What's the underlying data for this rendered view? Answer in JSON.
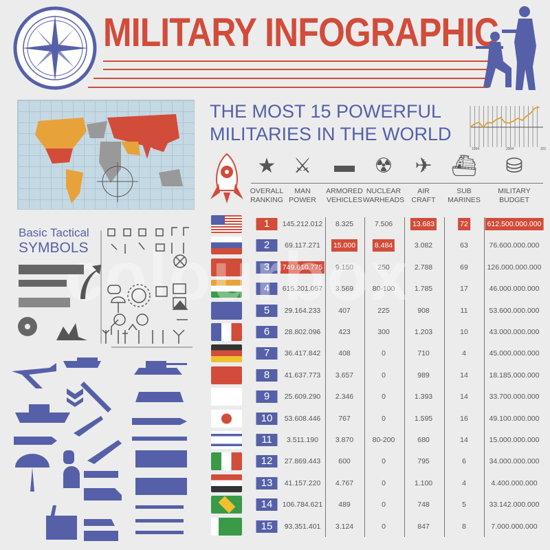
{
  "title": "MILITARY INFOGRAPHIC",
  "heading": {
    "line1": "THE MOST 15 POWERFUL",
    "line2": "MILITARIES IN THE WORLD"
  },
  "mini_chart": {
    "x_labels": [
      "1994",
      "2004",
      "2014"
    ],
    "color": "#e0a030"
  },
  "symbols_title": {
    "line1": "Basic Tactical",
    "line2": "SYMBOLS"
  },
  "watermark": "colourbox",
  "colors": {
    "red": "#d24c3a",
    "blue": "#5560a8",
    "background": "#ececec"
  },
  "columns": [
    {
      "key": "rank",
      "label1": "OVERALL",
      "label2": "RANKING",
      "icon": "star-icon"
    },
    {
      "key": "manpower",
      "label1": "MAN",
      "label2": "POWER",
      "icon": "soldiers-icon"
    },
    {
      "key": "armored",
      "label1": "ARMORED",
      "label2": "VEHICLES",
      "icon": "tank-icon"
    },
    {
      "key": "nuclear",
      "label1": "NUCLEAR",
      "label2": "WARHEADS",
      "icon": "gas-mask-icon"
    },
    {
      "key": "air",
      "label1": "AIR",
      "label2": "CRAFT",
      "icon": "jet-icon"
    },
    {
      "key": "sub",
      "label1": "SUB",
      "label2": "MARINES",
      "icon": "submarine-icon"
    },
    {
      "key": "budget",
      "label1": "MILITARY",
      "label2": "BUDGET",
      "icon": "coins-icon"
    }
  ],
  "rows": [
    {
      "flag": "usa",
      "rank": "1",
      "manpower": "145.212.012",
      "armored": "8.325",
      "nuclear": "7.506",
      "air": "13.683",
      "sub": "72",
      "budget": "612.500.000.000",
      "highlight": [
        "rank",
        "air",
        "sub",
        "budget"
      ]
    },
    {
      "flag": "russia",
      "rank": "2",
      "manpower": "69.117.271",
      "armored": "15.000",
      "nuclear": "8.484",
      "air": "3.082",
      "sub": "63",
      "budget": "76.600.000.000",
      "highlight": [
        "armored",
        "nuclear"
      ]
    },
    {
      "flag": "china",
      "rank": "3",
      "manpower": "749.610.775",
      "armored": "9.150",
      "nuclear": "250",
      "air": "2.788",
      "sub": "69",
      "budget": "126.000.000.000",
      "highlight": [
        "manpower"
      ]
    },
    {
      "flag": "india",
      "rank": "4",
      "manpower": "615.201.057",
      "armored": "3.569",
      "nuclear": "80-100",
      "air": "1.785",
      "sub": "17",
      "budget": "46.000.000.000",
      "highlight": []
    },
    {
      "flag": "uk",
      "rank": "5",
      "manpower": "29.164.233",
      "armored": "407",
      "nuclear": "225",
      "air": "908",
      "sub": "11",
      "budget": "53.600.000.000",
      "highlight": []
    },
    {
      "flag": "france",
      "rank": "6",
      "manpower": "28.802.096",
      "armored": "423",
      "nuclear": "300",
      "air": "1.203",
      "sub": "10",
      "budget": "43.000.000.000",
      "highlight": []
    },
    {
      "flag": "germany",
      "rank": "7",
      "manpower": "36.417.842",
      "armored": "408",
      "nuclear": "0",
      "air": "710",
      "sub": "4",
      "budget": "45.000.000.000",
      "highlight": []
    },
    {
      "flag": "turkey",
      "rank": "8",
      "manpower": "41.637.773",
      "armored": "3.657",
      "nuclear": "0",
      "air": "989",
      "sub": "14",
      "budget": "18.185.000.000",
      "highlight": []
    },
    {
      "flag": "south-korea",
      "rank": "9",
      "manpower": "25.609.290",
      "armored": "2.346",
      "nuclear": "0",
      "air": "1.393",
      "sub": "14",
      "budget": "33.700.000.000",
      "highlight": []
    },
    {
      "flag": "japan",
      "rank": "10",
      "manpower": "53.608.446",
      "armored": "767",
      "nuclear": "0",
      "air": "1.595",
      "sub": "16",
      "budget": "49.100.000.000",
      "highlight": []
    },
    {
      "flag": "israel",
      "rank": "11",
      "manpower": "3.511.190",
      "armored": "3.870",
      "nuclear": "80-200",
      "air": "680",
      "sub": "14",
      "budget": "15.000.000.000",
      "highlight": []
    },
    {
      "flag": "italy",
      "rank": "12",
      "manpower": "27.869.443",
      "armored": "600",
      "nuclear": "0",
      "air": "795",
      "sub": "6",
      "budget": "34.000.000.000",
      "highlight": []
    },
    {
      "flag": "egypt",
      "rank": "13",
      "manpower": "41.157.220",
      "armored": "4.767",
      "nuclear": "0",
      "air": "1.100",
      "sub": "4",
      "budget": "4.400.000.000",
      "highlight": []
    },
    {
      "flag": "brazil",
      "rank": "14",
      "manpower": "106.784.621",
      "armored": "489",
      "nuclear": "0",
      "air": "748",
      "sub": "5",
      "budget": "33.142.000.000",
      "highlight": []
    },
    {
      "flag": "pakistan",
      "rank": "15",
      "manpower": "93.351.401",
      "armored": "3.124",
      "nuclear": "0",
      "air": "847",
      "sub": "8",
      "budget": "7.000.000.000",
      "highlight": []
    }
  ]
}
